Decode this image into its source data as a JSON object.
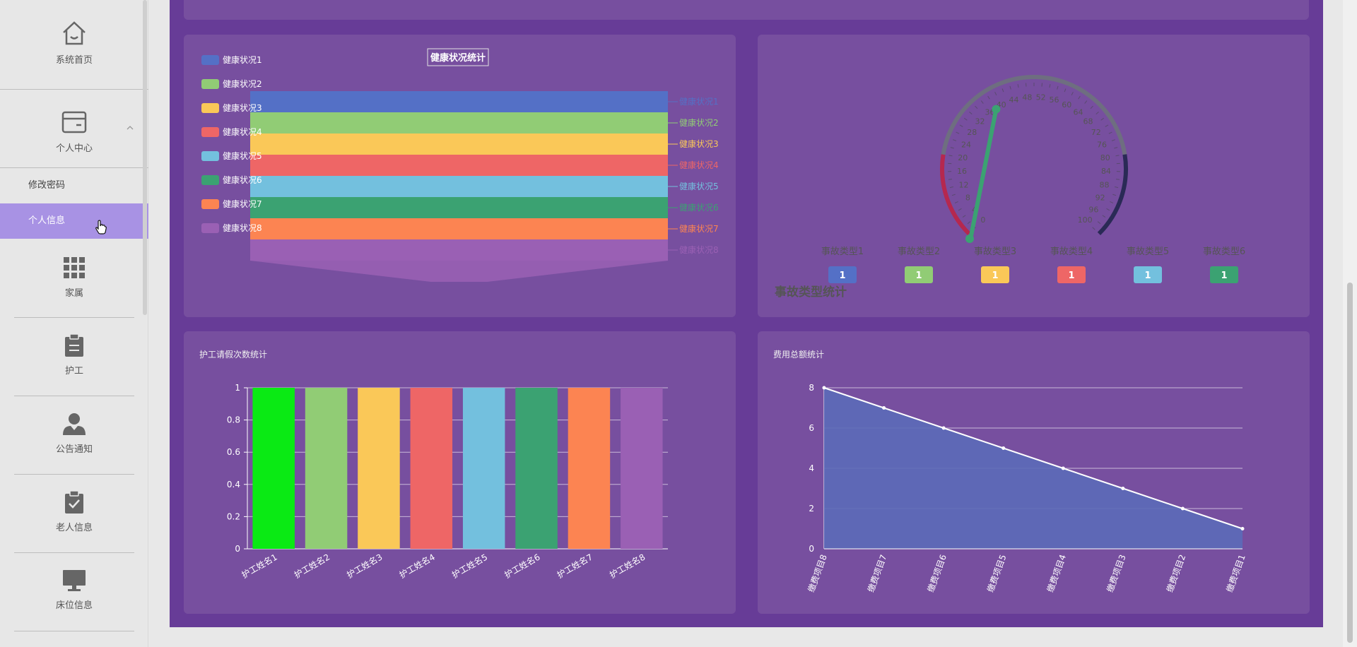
{
  "sidebar": {
    "items": [
      {
        "label": "系统首页",
        "icon": "home-icon"
      },
      {
        "label": "个人中心",
        "icon": "wallet-icon"
      },
      {
        "label": "家属",
        "icon": "grid-icon"
      },
      {
        "label": "护工",
        "icon": "clipboard-icon"
      },
      {
        "label": "公告通知",
        "icon": "user-icon"
      },
      {
        "label": "老人信息",
        "icon": "clipboard-check-icon"
      },
      {
        "label": "床位信息",
        "icon": "monitor-icon"
      }
    ],
    "sub_items": [
      {
        "label": "修改密码",
        "active": false
      },
      {
        "label": "个人信息",
        "active": true
      }
    ]
  },
  "colors": {
    "page_bg": "#673c97",
    "panel_bg": "#774f9f",
    "palette": [
      "#5470c6",
      "#91cc75",
      "#fac858",
      "#ee6666",
      "#73c0de",
      "#3ba272",
      "#fc8452",
      "#9a60b4"
    ]
  },
  "chart_data": [
    {
      "type": "funnel",
      "title": "健康状况统计",
      "legend": [
        "健康状况1",
        "健康状况2",
        "健康状况3",
        "健康状况4",
        "健康状况5",
        "健康状况6",
        "健康状况7",
        "健康状况8"
      ],
      "legend_position": "left",
      "categories": [
        "健康状况1",
        "健康状况2",
        "健康状况3",
        "健康状况4",
        "健康状况5",
        "健康状况6",
        "健康状况7",
        "健康状况8"
      ],
      "values": [
        1,
        1,
        1,
        1,
        1,
        1,
        1,
        1
      ]
    },
    {
      "type": "gauge",
      "title": "事故类型统计",
      "axis_range": [
        0,
        100
      ],
      "tick_labels": [
        "0",
        "4",
        "8",
        "12",
        "16",
        "20",
        "24",
        "28",
        "32",
        "36",
        "40",
        "44",
        "48",
        "52",
        "56",
        "60",
        "64",
        "68",
        "72",
        "76",
        "80",
        "84",
        "88",
        "92",
        "96",
        "100"
      ],
      "pointer_value": 38,
      "series": [
        {
          "name": "事故类型1",
          "value": 1
        },
        {
          "name": "事故类型2",
          "value": 1
        },
        {
          "name": "事故类型3",
          "value": 1
        },
        {
          "name": "事故类型4",
          "value": 1
        },
        {
          "name": "事故类型5",
          "value": 1
        },
        {
          "name": "事故类型6",
          "value": 1
        }
      ]
    },
    {
      "type": "bar",
      "title": "护工请假次数统计",
      "categories": [
        "护工姓名1",
        "护工姓名2",
        "护工姓名3",
        "护工姓名4",
        "护工姓名5",
        "护工姓名6",
        "护工姓名7",
        "护工姓名8"
      ],
      "values": [
        1,
        1,
        1,
        1,
        1,
        1,
        1,
        1
      ],
      "bar_colors": [
        "#0aea14",
        "#91cc75",
        "#fac858",
        "#ee6666",
        "#73c0de",
        "#3ba272",
        "#fc8452",
        "#9a60b4"
      ],
      "ylim": [
        0,
        1
      ],
      "yticks": [
        "0",
        "0.2",
        "0.4",
        "0.6",
        "0.8",
        "1"
      ],
      "grid": true
    },
    {
      "type": "area",
      "title": "费用总额统计",
      "categories": [
        "缴费项目8",
        "缴费项目7",
        "缴费项目6",
        "缴费项目5",
        "缴费项目4",
        "缴费项目3",
        "缴费项目2",
        "缴费项目1"
      ],
      "values": [
        8,
        7,
        6,
        5,
        4,
        3,
        2,
        1
      ],
      "ylim": [
        0,
        8
      ],
      "yticks": [
        "0",
        "2",
        "4",
        "6",
        "8"
      ],
      "grid": true
    }
  ]
}
